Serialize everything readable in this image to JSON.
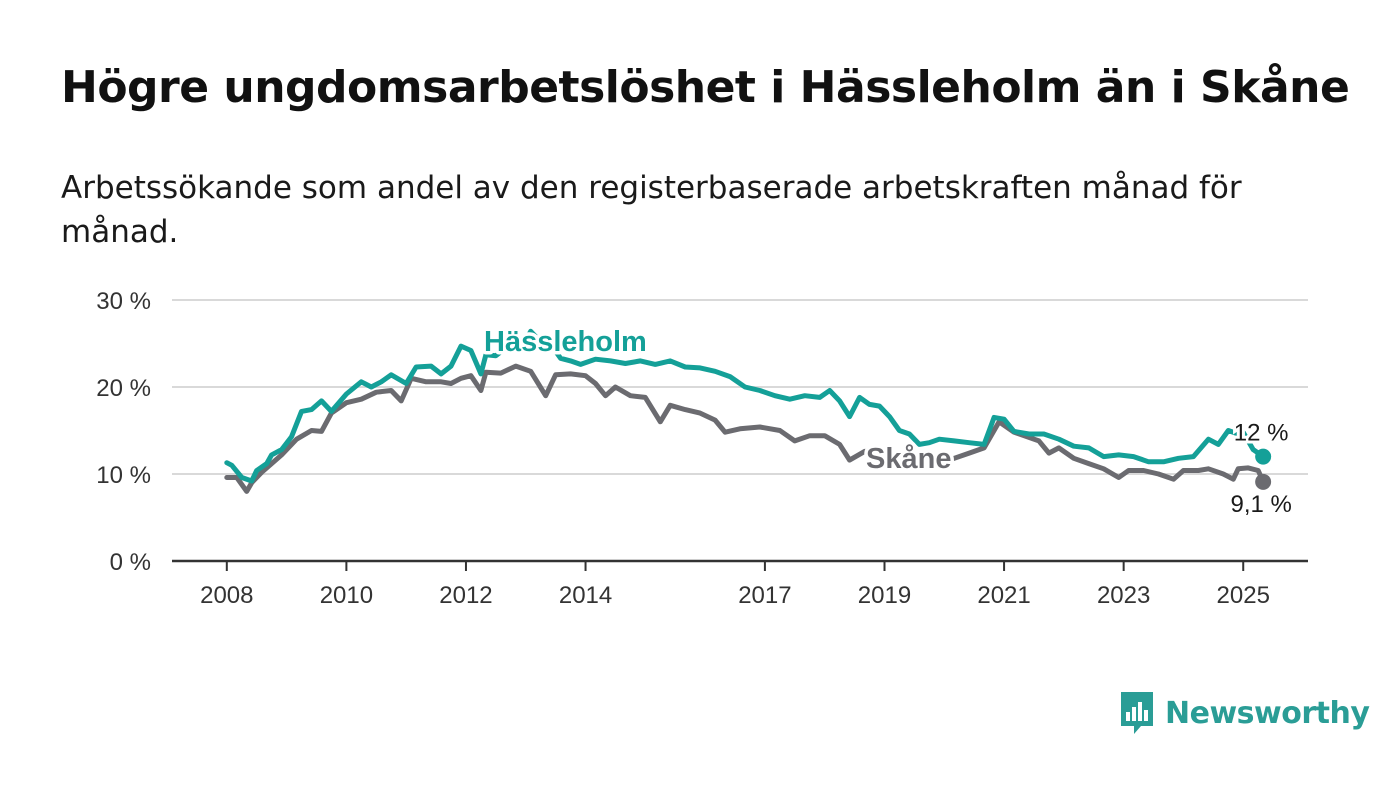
{
  "title": "Högre ungdomsarbetslöshet i Hässleholm än i Skåne",
  "subtitle": "Arbetssökande som andel av den registerbaserade arbetskraften månad för månad.",
  "brand": {
    "name": "Newsworthy",
    "color": "#2a9d96"
  },
  "chart_data": {
    "type": "line",
    "y_ticks": [
      "0 %",
      "10 %",
      "20 %",
      "30 %"
    ],
    "ylim": [
      0,
      30
    ],
    "x_ticks": [
      "2008",
      "2010",
      "2012",
      "2014",
      "2017",
      "2019",
      "2021",
      "2023",
      "2025"
    ],
    "xlim": [
      "2007-02",
      "2026-02"
    ],
    "grid": true,
    "series": [
      {
        "name": "Hässleholm",
        "color": "#14a098",
        "end_label": "12 %",
        "points": [
          [
            "2008-01",
            11.3
          ],
          [
            "2008-02",
            11.0
          ],
          [
            "2008-04",
            9.6
          ],
          [
            "2008-06",
            9.2
          ],
          [
            "2008-07",
            10.4
          ],
          [
            "2008-09",
            11.2
          ],
          [
            "2008-10",
            12.2
          ],
          [
            "2008-12",
            12.8
          ],
          [
            "2009-02",
            14.3
          ],
          [
            "2009-04",
            17.2
          ],
          [
            "2009-06",
            17.4
          ],
          [
            "2009-08",
            18.4
          ],
          [
            "2009-10",
            17.2
          ],
          [
            "2010-01",
            19.2
          ],
          [
            "2010-04",
            20.6
          ],
          [
            "2010-06",
            20.0
          ],
          [
            "2010-08",
            20.6
          ],
          [
            "2010-10",
            21.4
          ],
          [
            "2011-01",
            20.4
          ],
          [
            "2011-03",
            22.3
          ],
          [
            "2011-06",
            22.4
          ],
          [
            "2011-08",
            21.5
          ],
          [
            "2011-10",
            22.4
          ],
          [
            "2011-12",
            24.7
          ],
          [
            "2012-02",
            24.2
          ],
          [
            "2012-04",
            21.5
          ],
          [
            "2012-05",
            23.7
          ],
          [
            "2012-07",
            23.6
          ],
          [
            "2012-09",
            24.5
          ],
          [
            "2012-12",
            24.4
          ],
          [
            "2013-02",
            26.4
          ],
          [
            "2013-04",
            25.2
          ],
          [
            "2013-06",
            24.9
          ],
          [
            "2013-08",
            23.3
          ],
          [
            "2013-10",
            23.0
          ],
          [
            "2013-12",
            22.6
          ],
          [
            "2014-03",
            23.2
          ],
          [
            "2014-06",
            23.0
          ],
          [
            "2014-09",
            22.7
          ],
          [
            "2014-12",
            23.0
          ],
          [
            "2015-03",
            22.6
          ],
          [
            "2015-06",
            23.0
          ],
          [
            "2015-09",
            22.3
          ],
          [
            "2015-12",
            22.2
          ],
          [
            "2016-03",
            21.8
          ],
          [
            "2016-06",
            21.2
          ],
          [
            "2016-09",
            20.0
          ],
          [
            "2016-12",
            19.6
          ],
          [
            "2017-03",
            19.0
          ],
          [
            "2017-06",
            18.6
          ],
          [
            "2017-09",
            19.0
          ],
          [
            "2017-12",
            18.8
          ],
          [
            "2018-02",
            19.6
          ],
          [
            "2018-04",
            18.4
          ],
          [
            "2018-06",
            16.6
          ],
          [
            "2018-08",
            18.8
          ],
          [
            "2018-10",
            18.0
          ],
          [
            "2018-12",
            17.8
          ],
          [
            "2019-02",
            16.6
          ],
          [
            "2019-04",
            15.0
          ],
          [
            "2019-06",
            14.6
          ],
          [
            "2019-08",
            13.4
          ],
          [
            "2019-10",
            13.6
          ],
          [
            "2019-12",
            14.0
          ],
          [
            "2020-03",
            13.8
          ],
          [
            "2020-06",
            13.6
          ],
          [
            "2020-09",
            13.4
          ],
          [
            "2020-11",
            16.5
          ],
          [
            "2021-01",
            16.3
          ],
          [
            "2021-03",
            14.9
          ],
          [
            "2021-06",
            14.6
          ],
          [
            "2021-09",
            14.6
          ],
          [
            "2021-12",
            14.0
          ],
          [
            "2022-03",
            13.2
          ],
          [
            "2022-06",
            13.0
          ],
          [
            "2022-09",
            12.0
          ],
          [
            "2022-12",
            12.2
          ],
          [
            "2023-03",
            12.0
          ],
          [
            "2023-06",
            11.4
          ],
          [
            "2023-09",
            11.4
          ],
          [
            "2023-12",
            11.8
          ],
          [
            "2024-03",
            12.0
          ],
          [
            "2024-06",
            14.0
          ],
          [
            "2024-08",
            13.4
          ],
          [
            "2024-10",
            15.0
          ],
          [
            "2024-12",
            14.6
          ],
          [
            "2025-01",
            14.8
          ],
          [
            "2025-03",
            12.8
          ],
          [
            "2025-05",
            12.0
          ]
        ]
      },
      {
        "name": "Skåne",
        "color": "#6b6b70",
        "end_label": "9,1 %",
        "points": [
          [
            "2008-01",
            9.6
          ],
          [
            "2008-03",
            9.6
          ],
          [
            "2008-05",
            8.0
          ],
          [
            "2008-06",
            9.0
          ],
          [
            "2008-08",
            10.2
          ],
          [
            "2008-10",
            11.2
          ],
          [
            "2008-12",
            12.2
          ],
          [
            "2009-03",
            14.0
          ],
          [
            "2009-06",
            15.0
          ],
          [
            "2009-08",
            14.9
          ],
          [
            "2009-10",
            17.0
          ],
          [
            "2010-01",
            18.2
          ],
          [
            "2010-04",
            18.6
          ],
          [
            "2010-07",
            19.4
          ],
          [
            "2010-10",
            19.6
          ],
          [
            "2010-12",
            18.4
          ],
          [
            "2011-02",
            21.0
          ],
          [
            "2011-05",
            20.6
          ],
          [
            "2011-08",
            20.6
          ],
          [
            "2011-10",
            20.4
          ],
          [
            "2011-12",
            21.0
          ],
          [
            "2012-02",
            21.3
          ],
          [
            "2012-04",
            19.6
          ],
          [
            "2012-05",
            21.7
          ],
          [
            "2012-08",
            21.6
          ],
          [
            "2012-11",
            22.4
          ],
          [
            "2013-02",
            21.8
          ],
          [
            "2013-05",
            19.0
          ],
          [
            "2013-07",
            21.4
          ],
          [
            "2013-10",
            21.5
          ],
          [
            "2014-01",
            21.3
          ],
          [
            "2014-03",
            20.4
          ],
          [
            "2014-05",
            19.0
          ],
          [
            "2014-07",
            20.0
          ],
          [
            "2014-10",
            19.0
          ],
          [
            "2015-01",
            18.8
          ],
          [
            "2015-04",
            16.0
          ],
          [
            "2015-06",
            17.9
          ],
          [
            "2015-09",
            17.4
          ],
          [
            "2015-12",
            17.0
          ],
          [
            "2016-03",
            16.2
          ],
          [
            "2016-05",
            14.8
          ],
          [
            "2016-08",
            15.2
          ],
          [
            "2016-12",
            15.4
          ],
          [
            "2017-04",
            15.0
          ],
          [
            "2017-07",
            13.8
          ],
          [
            "2017-10",
            14.4
          ],
          [
            "2018-01",
            14.4
          ],
          [
            "2018-04",
            13.4
          ],
          [
            "2018-06",
            11.6
          ],
          [
            "2018-09",
            12.6
          ],
          [
            "2018-12",
            12.6
          ],
          [
            "2019-03",
            12.0
          ],
          [
            "2019-06",
            11.8
          ],
          [
            "2019-09",
            11.2
          ],
          [
            "2019-12",
            11.4
          ],
          [
            "2020-03",
            11.8
          ],
          [
            "2020-06",
            12.4
          ],
          [
            "2020-09",
            13.0
          ],
          [
            "2020-12",
            16.0
          ],
          [
            "2021-03",
            14.8
          ],
          [
            "2021-05",
            14.4
          ],
          [
            "2021-08",
            13.8
          ],
          [
            "2021-10",
            12.4
          ],
          [
            "2021-12",
            13.0
          ],
          [
            "2022-03",
            11.8
          ],
          [
            "2022-06",
            11.2
          ],
          [
            "2022-09",
            10.6
          ],
          [
            "2022-12",
            9.6
          ],
          [
            "2023-02",
            10.4
          ],
          [
            "2023-05",
            10.4
          ],
          [
            "2023-08",
            10.0
          ],
          [
            "2023-11",
            9.4
          ],
          [
            "2024-01",
            10.4
          ],
          [
            "2024-04",
            10.4
          ],
          [
            "2024-06",
            10.6
          ],
          [
            "2024-09",
            10.0
          ],
          [
            "2024-11",
            9.4
          ],
          [
            "2024-12",
            10.6
          ],
          [
            "2025-02",
            10.7
          ],
          [
            "2025-04",
            10.4
          ],
          [
            "2025-05",
            9.1
          ]
        ]
      }
    ]
  }
}
